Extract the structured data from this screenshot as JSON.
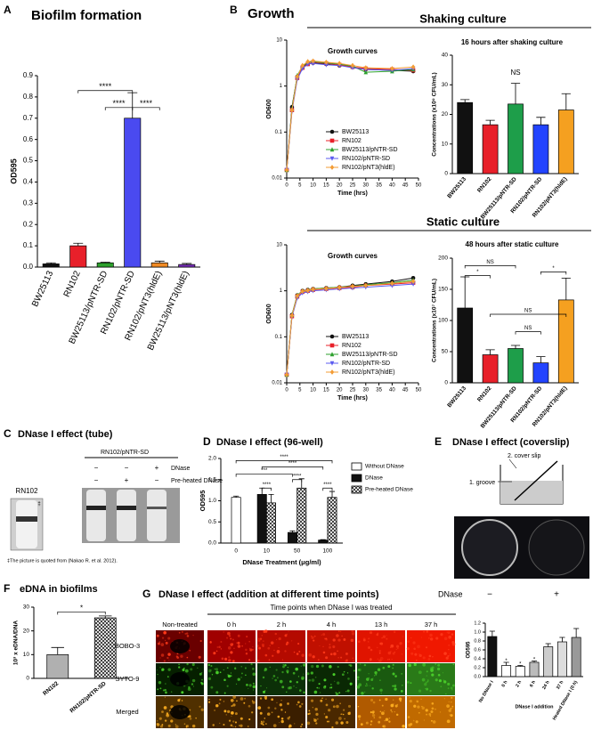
{
  "panel_labels": [
    "A",
    "B",
    "C",
    "D",
    "E",
    "F",
    "G"
  ],
  "b": {
    "title": "Growth",
    "shaking": "Shaking culture",
    "static": "Static culture"
  },
  "c": {
    "title": "DNase I effect (tube)",
    "strain": "RN102",
    "sample": "RN102/pNTR-SD",
    "dnase": "DNase",
    "preheated": "Pre-heated DNase",
    "signs": [
      [
        "−",
        "−",
        "+"
      ],
      [
        "−",
        "+",
        "−"
      ]
    ],
    "mark": "‡",
    "footnote": "‡The picture is quoted from (Nakao R. et al. 2012)."
  },
  "e": {
    "title": "DNase I effect (coverslip)",
    "coverslip": "2. cover slip",
    "groove": "1. groove",
    "dnase": "DNase",
    "signs": [
      "−",
      "+"
    ]
  },
  "g": {
    "title": "DNase I effect (addition at different time points)",
    "time_points": "Time points when DNase I was treated",
    "columns": [
      "Non-treated",
      "0 h",
      "2 h",
      "4 h",
      "13 h",
      "37 h"
    ],
    "rows": [
      "BOBO-3",
      "SYTO-9",
      "Merged"
    ]
  },
  "chart_data": [
    {
      "type": "bar",
      "title": "Biofilm formation",
      "ylabel": "OD595",
      "categories": [
        "BW25113",
        "RN102",
        "BW25113/pNTR-SD",
        "RN102/pNTR-SD",
        "RN102/pNT3(hldE)",
        "BW25113/pNT3(hldE)"
      ],
      "values": [
        0.015,
        0.1,
        0.02,
        0.7,
        0.02,
        0.012
      ],
      "errors": [
        0.005,
        0.012,
        0.003,
        0.12,
        0.008,
        0.005
      ],
      "colors": [
        "#111111",
        "#e8202a",
        "#2ca02c",
        "#4a4af0",
        "#f08a24",
        "#7b2fbe"
      ],
      "ylim": [
        0,
        0.9
      ],
      "yticks": [
        {
          "value": 0,
          "label": "0.0"
        },
        {
          "value": 0.1,
          "label": "0.1"
        },
        {
          "value": 0.2,
          "label": "0.2"
        },
        {
          "value": 0.3,
          "label": "0.3"
        },
        {
          "value": 0.4,
          "label": "0.4"
        },
        {
          "value": 0.5,
          "label": "0.5"
        },
        {
          "value": 0.6,
          "label": "0.6"
        },
        {
          "value": 0.7,
          "label": "0.7"
        },
        {
          "value": 0.8,
          "label": "0.8"
        },
        {
          "value": 0.9,
          "label": "0.9"
        }
      ],
      "annotations": [
        "****",
        "****",
        "****"
      ]
    },
    {
      "type": "line",
      "title": "Growth curves",
      "xlabel": "Time (hrs)",
      "ylabel": "OD600",
      "log_y": true,
      "x": [
        0,
        2,
        4,
        6,
        8,
        10,
        15,
        20,
        25,
        30,
        40,
        48
      ],
      "xlim": [
        0,
        50
      ],
      "xticks": [
        0,
        5,
        10,
        15,
        20,
        25,
        30,
        35,
        40,
        45,
        50
      ],
      "ylim": [
        0.01,
        10
      ],
      "yticks": [
        0.01,
        0.1,
        1,
        10
      ],
      "series": [
        {
          "name": "BW25113",
          "color": "#111111",
          "marker": "circle",
          "values": [
            0.015,
            0.35,
            1.6,
            2.6,
            3.1,
            3.2,
            3.0,
            2.8,
            2.6,
            2.3,
            2.2,
            2.1
          ]
        },
        {
          "name": "RN102",
          "color": "#e8202a",
          "marker": "square",
          "values": [
            0.015,
            0.3,
            1.5,
            2.5,
            3.0,
            3.3,
            3.1,
            2.9,
            2.6,
            2.4,
            2.3,
            2.2
          ]
        },
        {
          "name": "BW25113/pNTR-SD",
          "color": "#2ca02c",
          "marker": "triangle",
          "values": [
            0.015,
            0.32,
            1.7,
            2.7,
            3.3,
            3.4,
            3.2,
            3.0,
            2.7,
            2.0,
            2.1,
            2.3
          ]
        },
        {
          "name": "RN102/pNTR-SD",
          "color": "#5b5bf0",
          "marker": "triangle-down",
          "values": [
            0.015,
            0.28,
            1.4,
            2.4,
            3.0,
            3.1,
            2.9,
            2.8,
            2.5,
            2.3,
            2.2,
            2.4
          ]
        },
        {
          "name": "RN102/pNT3(hldE)",
          "color": "#f39c34",
          "marker": "diamond",
          "values": [
            0.015,
            0.3,
            1.6,
            2.8,
            3.4,
            3.5,
            3.3,
            3.1,
            2.8,
            2.5,
            2.4,
            2.6
          ]
        }
      ]
    },
    {
      "type": "bar",
      "title": "16 hours after shaking culture",
      "ylabel": "Concentrations (x10⁹ CFU/mL)",
      "categories": [
        "BW25113",
        "RN102",
        "BW25113/pNTR-SD",
        "RN102/pNTR-SD",
        "RN102/pNT3(hldE)"
      ],
      "values": [
        24,
        16.5,
        23.5,
        16.5,
        21.5
      ],
      "errors": [
        1,
        1.5,
        7,
        2.5,
        5.5
      ],
      "colors": [
        "#111111",
        "#e8202a",
        "#1e9e4a",
        "#2244ff",
        "#f5a020"
      ],
      "ylim": [
        0,
        40
      ],
      "yticks": [
        0,
        10,
        20,
        30,
        40
      ],
      "annotations": [
        "NS"
      ]
    },
    {
      "type": "line",
      "title": "Growth curves",
      "xlabel": "Time (hrs)",
      "ylabel": "OD600",
      "log_y": true,
      "x": [
        0,
        2,
        4,
        6,
        8,
        10,
        15,
        20,
        25,
        30,
        40,
        48
      ],
      "xlim": [
        0,
        50
      ],
      "xticks": [
        0,
        5,
        10,
        15,
        20,
        25,
        30,
        35,
        40,
        45,
        50
      ],
      "ylim": [
        0.01,
        10
      ],
      "yticks": [
        0.01,
        0.1,
        1,
        10
      ],
      "series": [
        {
          "name": "BW25113",
          "color": "#111111",
          "marker": "circle",
          "values": [
            0.015,
            0.3,
            0.8,
            1.0,
            1.05,
            1.1,
            1.15,
            1.2,
            1.3,
            1.4,
            1.6,
            1.9
          ]
        },
        {
          "name": "RN102",
          "color": "#e8202a",
          "marker": "square",
          "values": [
            0.015,
            0.28,
            0.75,
            0.95,
            1.0,
            1.05,
            1.1,
            1.15,
            1.2,
            1.3,
            1.4,
            1.5
          ]
        },
        {
          "name": "BW25113/pNTR-SD",
          "color": "#2ca02c",
          "marker": "triangle",
          "values": [
            0.015,
            0.3,
            0.8,
            1.0,
            1.05,
            1.1,
            1.15,
            1.2,
            1.25,
            1.35,
            1.5,
            1.7
          ]
        },
        {
          "name": "RN102/pNTR-SD",
          "color": "#5b5bf0",
          "marker": "triangle-down",
          "values": [
            0.015,
            0.27,
            0.7,
            0.9,
            0.95,
            1.0,
            1.05,
            1.1,
            1.15,
            1.2,
            1.3,
            1.4
          ]
        },
        {
          "name": "RN102/pNT3(hldE)",
          "color": "#f39c34",
          "marker": "diamond",
          "values": [
            0.015,
            0.29,
            0.78,
            0.98,
            1.02,
            1.08,
            1.12,
            1.18,
            1.25,
            1.3,
            1.45,
            1.6
          ]
        }
      ]
    },
    {
      "type": "bar",
      "title": "48 hours after static culture",
      "ylabel": "Concentrations (x10⁷ CFU/mL)",
      "categories": [
        "BW25113",
        "RN102",
        "BW25113/pNTR-SD",
        "RN102/pNTR-SD",
        "RN102/pNT3(hldE)"
      ],
      "values": [
        120,
        45,
        55,
        32,
        133
      ],
      "errors": [
        50,
        8,
        5,
        10,
        35
      ],
      "colors": [
        "#111111",
        "#e8202a",
        "#1e9e4a",
        "#2244ff",
        "#f5a020"
      ],
      "ylim": [
        0,
        200
      ],
      "yticks": [
        0,
        50,
        100,
        150,
        200
      ],
      "annotations": [
        "NS",
        "*",
        "NS",
        "NS",
        "*"
      ]
    },
    {
      "type": "bar",
      "title": "DNase I effect (96-well)",
      "ylabel": "OD595",
      "xlabel": "DNase Treatment (μg/ml)",
      "categories": [
        "0",
        "10",
        "50",
        "100"
      ],
      "series": [
        {
          "name": "Without DNase",
          "color": "#ffffff",
          "values": [
            1.08,
            null,
            null,
            null
          ],
          "errors": [
            0.03,
            null,
            null,
            null
          ]
        },
        {
          "name": "DNase",
          "color": "#111111",
          "values": [
            null,
            1.15,
            0.25,
            0.07
          ],
          "errors": [
            null,
            0.15,
            0.04,
            0.01
          ]
        },
        {
          "name": "Pre-heated DNase",
          "color": "#ffffff",
          "fill_pattern": "crosshatch",
          "values": [
            null,
            0.95,
            1.3,
            1.08
          ],
          "errors": [
            null,
            0.2,
            0.22,
            0.14
          ]
        }
      ],
      "ylim": [
        0,
        2
      ],
      "yticks": [
        {
          "value": 0,
          "label": "0.0"
        },
        {
          "value": 0.5,
          "label": "0.5"
        },
        {
          "value": 1,
          "label": "1.0"
        },
        {
          "value": 1.5,
          "label": "1.5"
        },
        {
          "value": 2,
          "label": "2.0"
        }
      ],
      "annotations": [
        "****",
        "****",
        "***",
        "****",
        "****",
        "****"
      ]
    },
    {
      "type": "bar",
      "title": "eDNA in biofilms",
      "ylabel": "10³ x eDNA/DNA",
      "categories": [
        "RN102",
        "RN102/pNTR-SD"
      ],
      "values": [
        10,
        25.5
      ],
      "errors": [
        3,
        0.8
      ],
      "colors": [
        "#b0b0b0",
        "#ffffff"
      ],
      "fill_patterns": [
        null,
        "crosshatch"
      ],
      "ylim": [
        0,
        30
      ],
      "yticks": [
        0,
        10,
        20,
        30
      ],
      "annotations": [
        "*"
      ]
    },
    {
      "type": "bar",
      "ylabel": "OD595",
      "xlabel": "DNase I addition",
      "categories": [
        "No DNase I",
        "0 h",
        "2 h",
        "6 h",
        "24 h",
        "37 h",
        "Heated DNase I (0 h)"
      ],
      "values": [
        0.9,
        0.25,
        0.23,
        0.32,
        0.67,
        0.78,
        0.88
      ],
      "errors": [
        0.12,
        0.07,
        0.02,
        0.03,
        0.07,
        0.1,
        0.2
      ],
      "colors": [
        "#111111",
        "#ffffff",
        "#ffffff",
        "#bbbbbb",
        "#cccccc",
        "#dddddd",
        "#999999"
      ],
      "ylim": [
        0,
        1.2
      ],
      "yticks": [
        {
          "value": 0,
          "label": "0.0"
        },
        {
          "value": 0.2,
          "label": "0.2"
        },
        {
          "value": 0.4,
          "label": "0.4"
        },
        {
          "value": 0.6,
          "label": "0.6"
        },
        {
          "value": 0.8,
          "label": "0.8"
        },
        {
          "value": 1,
          "label": "1.0"
        },
        {
          "value": 1.2,
          "label": "1.2"
        }
      ],
      "annotations": [
        "*",
        "*",
        "*"
      ]
    }
  ]
}
